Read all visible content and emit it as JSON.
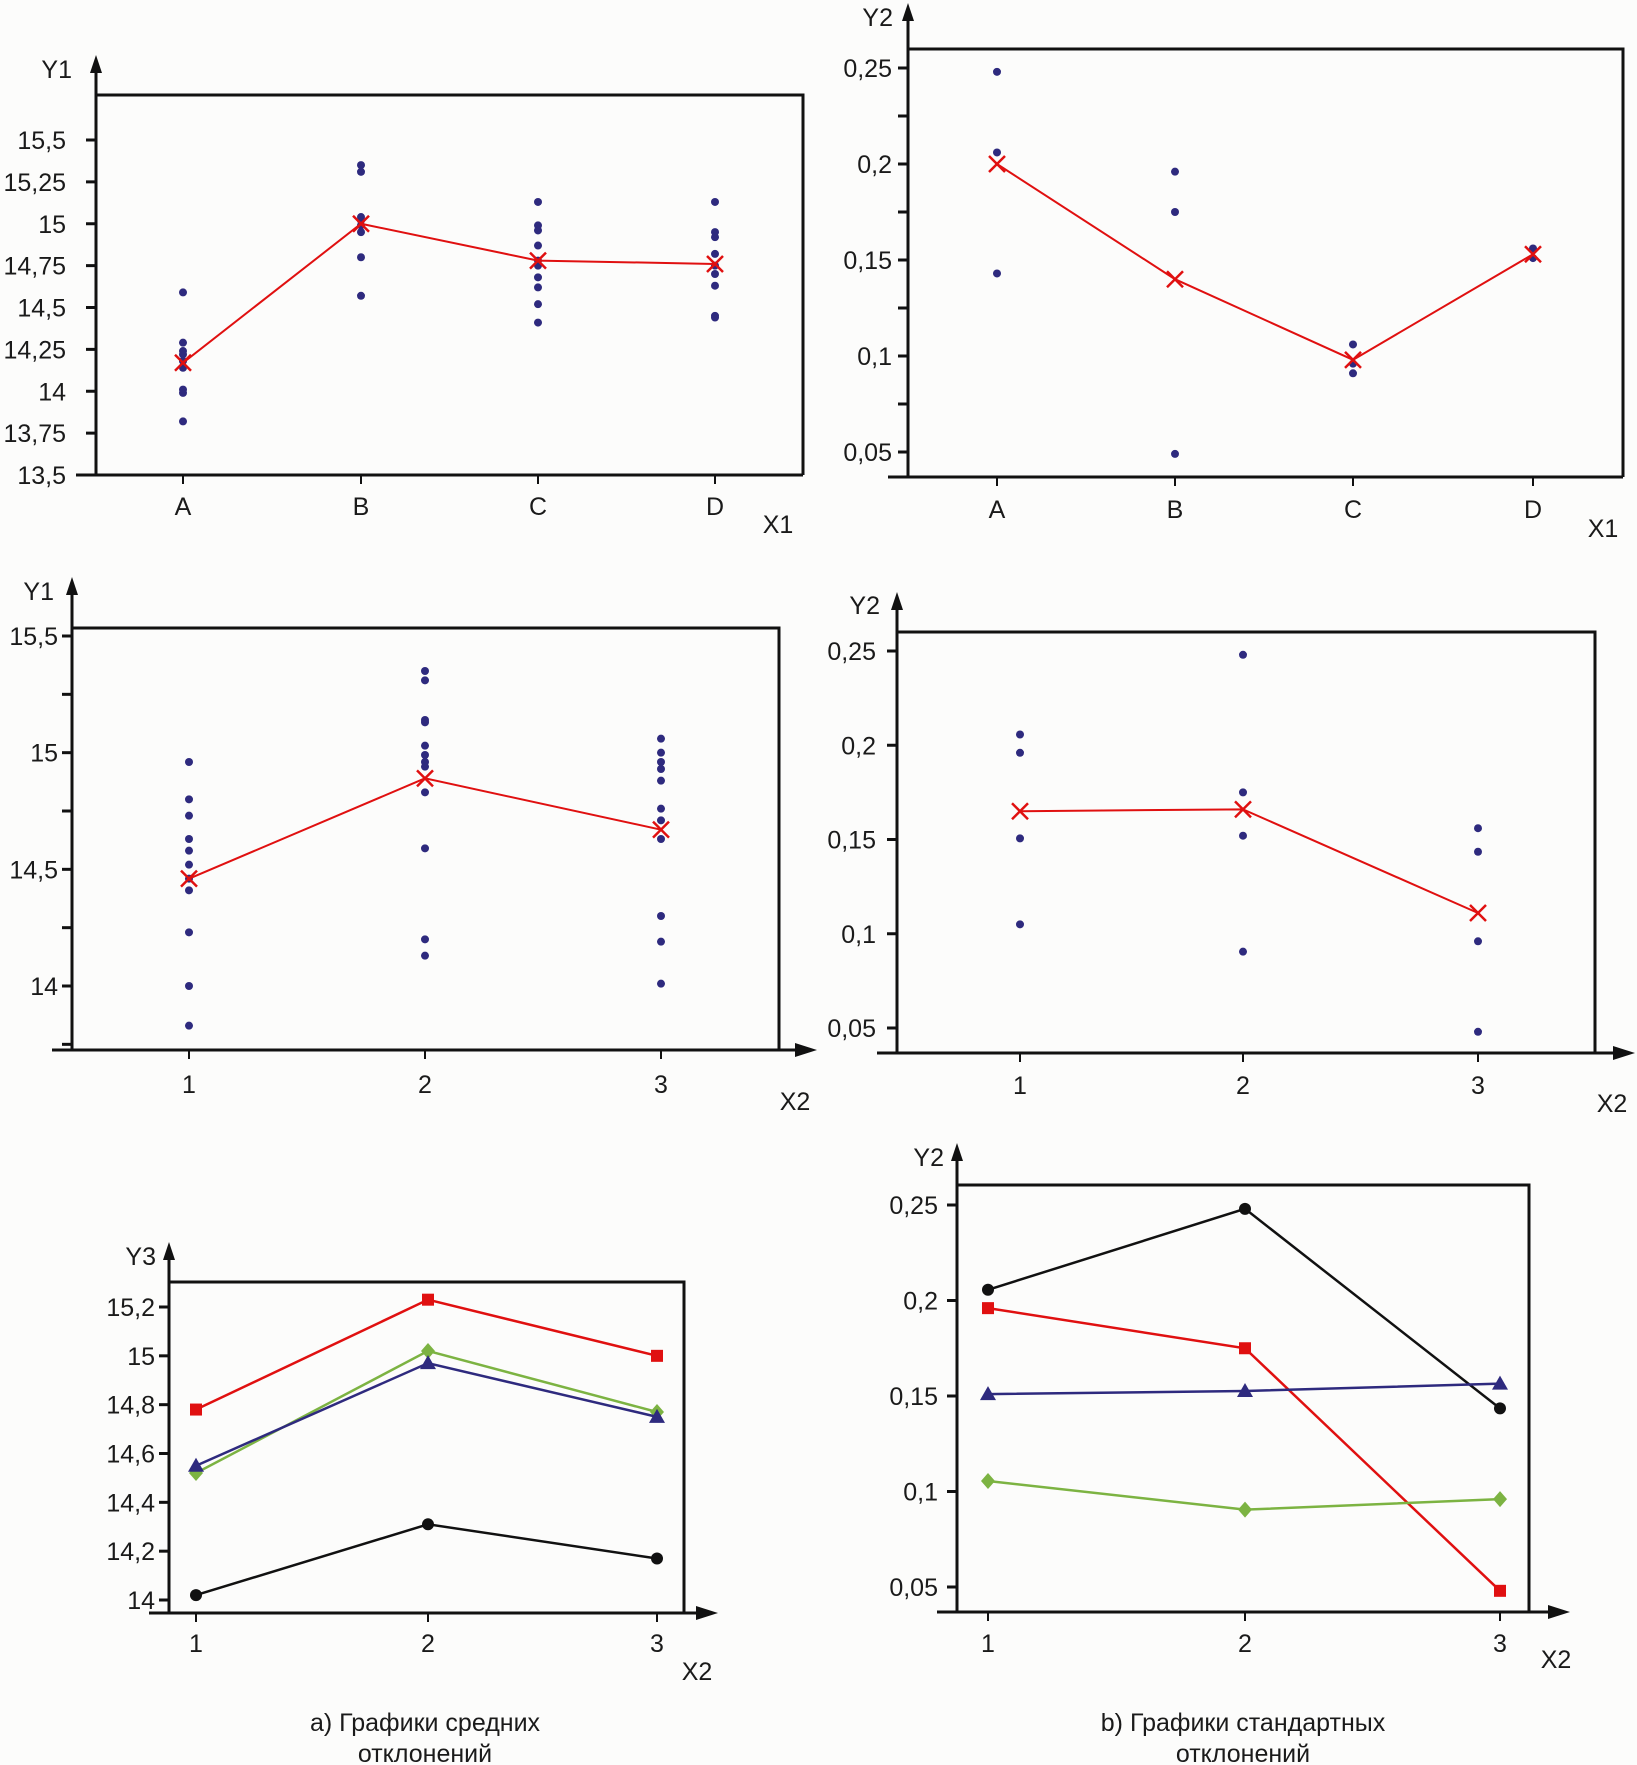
{
  "captions": {
    "a_line1": "a) Графики средних",
    "a_line2": "отклонений",
    "b_line1": "b) Графики стандартных",
    "b_line2": "отклонений"
  },
  "chart_data": [
    {
      "id": "top-left",
      "type": "scatter",
      "title": "",
      "xlabel": "X1",
      "ylabel": "Y1",
      "categories": [
        "A",
        "B",
        "C",
        "D"
      ],
      "ylim": [
        13.5,
        15.75
      ],
      "yticks": [
        13.5,
        13.75,
        14,
        14.25,
        14.5,
        14.75,
        15,
        15.25,
        15.5
      ],
      "ytick_labels": [
        "13,5",
        "13,75",
        "14",
        "14,25",
        "14,5",
        "14,75",
        "15",
        "15,25",
        "15,5"
      ],
      "grid": false,
      "points": [
        [
          14.59,
          14.29,
          14.24,
          14.22,
          14.18,
          14.14,
          14.01,
          13.99,
          13.82
        ],
        [
          15.35,
          15.31,
          15.04,
          15.02,
          14.99,
          14.95,
          14.8,
          14.57
        ],
        [
          15.13,
          14.99,
          14.96,
          14.87,
          14.78,
          14.75,
          14.68,
          14.62,
          14.52,
          14.41
        ],
        [
          15.13,
          14.95,
          14.92,
          14.82,
          14.75,
          14.7,
          14.63,
          14.45,
          14.44
        ]
      ],
      "means": [
        14.17,
        15.0,
        14.78,
        14.76
      ],
      "point_color": "#2e2a7e",
      "mean_color": "#e01010"
    },
    {
      "id": "top-right",
      "type": "scatter",
      "title": "",
      "xlabel": "X1",
      "ylabel": "Y2",
      "categories": [
        "A",
        "B",
        "C",
        "D"
      ],
      "ylim": [
        0.037,
        0.261
      ],
      "yticks": [
        0.05,
        0.075,
        0.1,
        0.125,
        0.15,
        0.175,
        0.2,
        0.225,
        0.25
      ],
      "ytick_labels": [
        "0,05",
        "",
        "0,1",
        "",
        "0,15",
        "",
        "0,2",
        "",
        "0,25"
      ],
      "grid": false,
      "points": [
        [
          0.248,
          0.206,
          0.143
        ],
        [
          0.196,
          0.175,
          0.049
        ],
        [
          0.106,
          0.096,
          0.091
        ],
        [
          0.156,
          0.151
        ]
      ],
      "means": [
        0.2,
        0.14,
        0.098,
        0.153
      ],
      "point_color": "#2e2a7e",
      "mean_color": "#e01010"
    },
    {
      "id": "middle-left",
      "type": "scatter",
      "title": "",
      "xlabel": "X2",
      "ylabel": "Y1",
      "categories": [
        "1",
        "2",
        "3"
      ],
      "ylim": [
        13.77,
        15.56
      ],
      "yticks": [
        13.75,
        14,
        14.25,
        14.5,
        14.75,
        15,
        15.25,
        15.5
      ],
      "ytick_labels": [
        "",
        "14",
        "",
        "14,5",
        "",
        "15",
        "",
        "15,5"
      ],
      "grid": false,
      "points": [
        [
          14.96,
          14.8,
          14.73,
          14.63,
          14.58,
          14.52,
          14.46,
          14.41,
          14.23,
          14.0,
          13.83
        ],
        [
          15.35,
          15.31,
          15.14,
          15.13,
          15.03,
          14.99,
          14.96,
          14.94,
          14.83,
          14.59,
          14.2,
          14.13
        ],
        [
          15.06,
          15.0,
          14.96,
          14.93,
          14.88,
          14.76,
          14.71,
          14.63,
          14.3,
          14.19,
          14.01
        ]
      ],
      "means": [
        14.46,
        14.89,
        14.67
      ],
      "point_color": "#2e2a7e",
      "mean_color": "#e01010"
    },
    {
      "id": "middle-right",
      "type": "scatter",
      "title": "",
      "xlabel": "X2",
      "ylabel": "Y2",
      "categories": [
        "1",
        "2",
        "3"
      ],
      "ylim": [
        0.036,
        0.261
      ],
      "yticks": [
        0.05,
        0.1,
        0.15,
        0.2,
        0.25
      ],
      "ytick_labels": [
        "0,05",
        "0,1",
        "0,15",
        "0,2",
        "0,25"
      ],
      "grid": false,
      "points": [
        [
          0.2057,
          0.196,
          0.1506,
          0.105
        ],
        [
          0.248,
          0.175,
          0.152,
          0.0905
        ],
        [
          0.156,
          0.1435,
          0.096,
          0.048
        ]
      ],
      "means": [
        0.165,
        0.166,
        0.111
      ],
      "point_color": "#2e2a7e",
      "mean_color": "#e01010"
    },
    {
      "id": "bottom-left",
      "type": "line",
      "title": "",
      "xlabel": "X2",
      "ylabel": "Y3",
      "categories": [
        "1",
        "2",
        "3"
      ],
      "ylim": [
        13.96,
        15.33
      ],
      "yticks": [
        14,
        14.2,
        14.4,
        14.6,
        14.8,
        15,
        15.2
      ],
      "ytick_labels": [
        "14",
        "14,2",
        "14,4",
        "14,6",
        "14,8",
        "15",
        "15,2"
      ],
      "grid": false,
      "series": [
        {
          "name": "red-square",
          "marker": "square",
          "color": "#e01010",
          "values": [
            14.78,
            15.23,
            15.0
          ]
        },
        {
          "name": "green-diamond",
          "marker": "diamond",
          "color": "#7cb342",
          "values": [
            14.52,
            15.02,
            14.77
          ]
        },
        {
          "name": "blue-triangle",
          "marker": "triangle",
          "color": "#2e2a7e",
          "values": [
            14.55,
            14.97,
            14.75
          ]
        },
        {
          "name": "black-circle",
          "marker": "circle",
          "color": "#111111",
          "values": [
            14.02,
            14.31,
            14.17
          ]
        }
      ]
    },
    {
      "id": "bottom-right",
      "type": "line",
      "title": "",
      "xlabel": "X2",
      "ylabel": "Y2",
      "categories": [
        "1",
        "2",
        "3"
      ],
      "ylim": [
        0.036,
        0.261
      ],
      "yticks": [
        0.05,
        0.1,
        0.15,
        0.2,
        0.25
      ],
      "ytick_labels": [
        "0,05",
        "0,1",
        "0,15",
        "0,2",
        "0,25"
      ],
      "grid": false,
      "series": [
        {
          "name": "black-circle",
          "marker": "circle",
          "color": "#111111",
          "values": [
            0.2056,
            0.248,
            0.1435
          ]
        },
        {
          "name": "red-square",
          "marker": "square",
          "color": "#e01010",
          "values": [
            0.196,
            0.175,
            0.048
          ]
        },
        {
          "name": "blue-triangle",
          "marker": "triangle",
          "color": "#2e2a7e",
          "values": [
            0.151,
            0.1526,
            0.1565
          ]
        },
        {
          "name": "green-diamond",
          "marker": "diamond",
          "color": "#7cb342",
          "values": [
            0.1055,
            0.0905,
            0.096
          ]
        }
      ]
    }
  ]
}
